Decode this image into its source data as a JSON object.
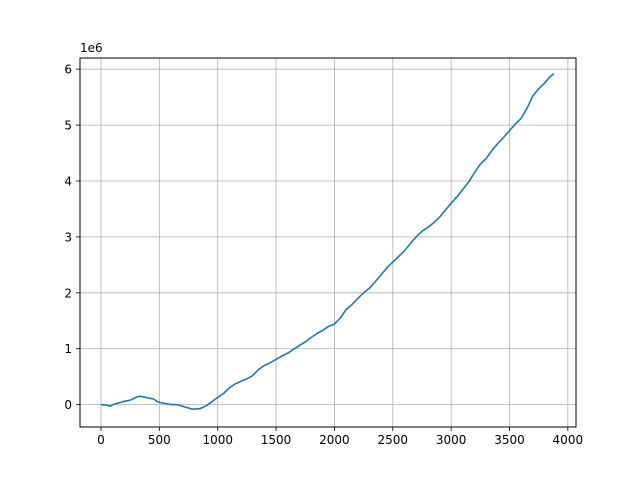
{
  "chart_data": {
    "type": "line",
    "title": "",
    "xlabel": "",
    "ylabel": "",
    "y_offset_label": "1e6",
    "xlim": [
      -180,
      4070
    ],
    "ylim": [
      -0.4,
      6.2
    ],
    "x_ticks": [
      0,
      500,
      1000,
      1500,
      2000,
      2500,
      3000,
      3500,
      4000
    ],
    "x_tick_labels": [
      "0",
      "500",
      "1000",
      "1500",
      "2000",
      "2500",
      "3000",
      "3500",
      "4000"
    ],
    "y_ticks": [
      0,
      1,
      2,
      3,
      4,
      5,
      6
    ],
    "y_tick_labels": [
      "0",
      "1",
      "2",
      "3",
      "4",
      "5",
      "6"
    ],
    "grid": true,
    "legend": "none",
    "series": [
      {
        "color": "#1f77b4",
        "x": [
          0,
          50,
          80,
          100,
          150,
          200,
          250,
          300,
          330,
          360,
          400,
          450,
          480,
          500,
          550,
          600,
          650,
          700,
          750,
          780,
          800,
          850,
          900,
          950,
          1000,
          1050,
          1100,
          1150,
          1200,
          1250,
          1300,
          1350,
          1400,
          1450,
          1500,
          1550,
          1600,
          1650,
          1700,
          1750,
          1800,
          1850,
          1900,
          1950,
          2000,
          2050,
          2100,
          2150,
          2200,
          2250,
          2300,
          2350,
          2400,
          2450,
          2500,
          2550,
          2600,
          2650,
          2700,
          2750,
          2800,
          2850,
          2900,
          2950,
          3000,
          3050,
          3100,
          3150,
          3200,
          3250,
          3300,
          3350,
          3400,
          3450,
          3500,
          3550,
          3600,
          3650,
          3700,
          3750,
          3800,
          3850,
          3880
        ],
        "y": [
          0.0,
          -0.01,
          -0.03,
          0.0,
          0.03,
          0.06,
          0.08,
          0.13,
          0.15,
          0.14,
          0.12,
          0.1,
          0.06,
          0.04,
          0.02,
          0.0,
          0.0,
          -0.03,
          -0.06,
          -0.08,
          -0.08,
          -0.07,
          -0.02,
          0.05,
          0.13,
          0.2,
          0.3,
          0.37,
          0.42,
          0.46,
          0.52,
          0.63,
          0.7,
          0.75,
          0.81,
          0.87,
          0.92,
          0.99,
          1.06,
          1.12,
          1.2,
          1.27,
          1.33,
          1.4,
          1.44,
          1.55,
          1.7,
          1.79,
          1.9,
          2.0,
          2.08,
          2.2,
          2.32,
          2.45,
          2.55,
          2.65,
          2.75,
          2.88,
          3.0,
          3.1,
          3.17,
          3.25,
          3.35,
          3.48,
          3.6,
          3.72,
          3.85,
          3.98,
          4.15,
          4.3,
          4.4,
          4.55,
          4.67,
          4.78,
          4.9,
          5.02,
          5.12,
          5.3,
          5.52,
          5.65,
          5.75,
          5.87,
          5.92
        ]
      }
    ]
  }
}
